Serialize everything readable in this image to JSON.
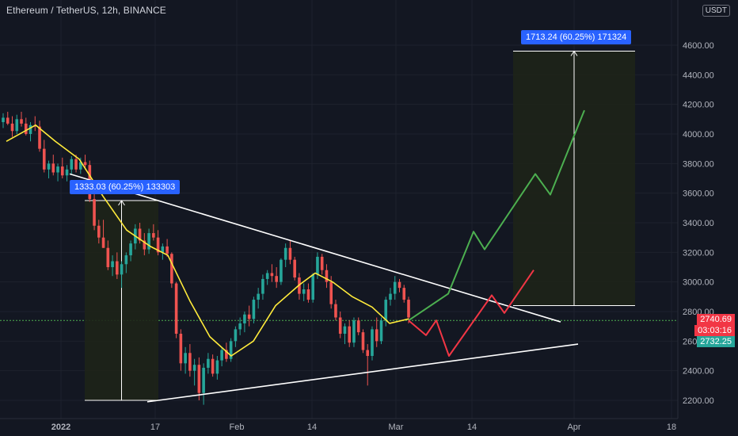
{
  "header": {
    "title": "Ethereum / TetherUS, 12h, BINANCE",
    "currency": "USDT"
  },
  "price_tags": {
    "last": "2740.69",
    "countdown": "03:03:16",
    "secondary": "2732.25",
    "last_color": "#f23645",
    "secondary_color": "#26a69a"
  },
  "annotations": {
    "measure_left": "1333.03 (60.25%) 133303",
    "measure_right": "1713.24 (60.25%) 171324"
  },
  "colors": {
    "up": "#26a69a",
    "down": "#ef5350",
    "ma": "#ffeb3b",
    "trendline": "#ffffff",
    "projection_up": "#4caf50",
    "projection_down": "#f23645",
    "hline": "#4caf50",
    "measure_box": "#1e2418"
  },
  "chart_data": {
    "type": "candlestick",
    "title": "Ethereum / TetherUS, 12h, BINANCE",
    "y_unit": "USDT",
    "ylim": [
      2130,
      4840
    ],
    "y_ticks": [
      "4600.00",
      "4400.00",
      "4200.00",
      "4000.00",
      "3800.00",
      "3600.00",
      "3400.00",
      "3200.00",
      "3000.00",
      "2800.00",
      "2600.00",
      "2400.00",
      "2200.00"
    ],
    "x_ticks": [
      "2022",
      "17",
      "Feb",
      "14",
      "Mar",
      "14",
      "Apr",
      "18"
    ],
    "candles": [
      [
        4080,
        4140,
        4040,
        4110
      ],
      [
        4110,
        4150,
        4060,
        4070
      ],
      [
        4070,
        4120,
        3980,
        4020
      ],
      [
        4020,
        4130,
        4000,
        4100
      ],
      [
        4100,
        4150,
        4050,
        4070
      ],
      [
        4070,
        4110,
        3990,
        4000
      ],
      [
        4000,
        4080,
        3950,
        4060
      ],
      [
        4060,
        4120,
        4020,
        4050
      ],
      [
        4050,
        4090,
        3880,
        3900
      ],
      [
        3900,
        3960,
        3740,
        3760
      ],
      [
        3760,
        3820,
        3700,
        3800
      ],
      [
        3800,
        3860,
        3720,
        3740
      ],
      [
        3740,
        3800,
        3680,
        3780
      ],
      [
        3780,
        3840,
        3700,
        3720
      ],
      [
        3720,
        3790,
        3680,
        3760
      ],
      [
        3760,
        3850,
        3730,
        3830
      ],
      [
        3830,
        3860,
        3740,
        3760
      ],
      [
        3760,
        3840,
        3730,
        3810
      ],
      [
        3810,
        3860,
        3760,
        3790
      ],
      [
        3790,
        3820,
        3540,
        3560
      ],
      [
        3560,
        3600,
        3350,
        3380
      ],
      [
        3380,
        3420,
        3260,
        3300
      ],
      [
        3300,
        3420,
        3230,
        3230
      ],
      [
        3230,
        3280,
        3080,
        3100
      ],
      [
        3100,
        3180,
        3040,
        3140
      ],
      [
        3140,
        3200,
        3020,
        3050
      ],
      [
        3050,
        3140,
        2960,
        3120
      ],
      [
        3120,
        3200,
        3060,
        3180
      ],
      [
        3180,
        3280,
        3140,
        3260
      ],
      [
        3260,
        3390,
        3220,
        3360
      ],
      [
        3360,
        3400,
        3260,
        3280
      ],
      [
        3280,
        3330,
        3180,
        3220
      ],
      [
        3220,
        3360,
        3190,
        3330
      ],
      [
        3330,
        3390,
        3280,
        3300
      ],
      [
        3300,
        3350,
        3180,
        3200
      ],
      [
        3200,
        3260,
        3150,
        3240
      ],
      [
        3240,
        3290,
        3170,
        3190
      ],
      [
        3190,
        3200,
        2960,
        2990
      ],
      [
        2990,
        3000,
        2620,
        2650
      ],
      [
        2650,
        2680,
        2400,
        2450
      ],
      [
        2450,
        2560,
        2380,
        2520
      ],
      [
        2520,
        2580,
        2360,
        2400
      ],
      [
        2400,
        2480,
        2300,
        2440
      ],
      [
        2440,
        2490,
        2200,
        2250
      ],
      [
        2250,
        2450,
        2170,
        2420
      ],
      [
        2420,
        2520,
        2380,
        2480
      ],
      [
        2480,
        2510,
        2360,
        2380
      ],
      [
        2380,
        2500,
        2340,
        2470
      ],
      [
        2470,
        2560,
        2430,
        2540
      ],
      [
        2540,
        2590,
        2460,
        2480
      ],
      [
        2480,
        2620,
        2460,
        2600
      ],
      [
        2600,
        2700,
        2560,
        2680
      ],
      [
        2680,
        2760,
        2640,
        2720
      ],
      [
        2720,
        2800,
        2660,
        2780
      ],
      [
        2780,
        2840,
        2700,
        2750
      ],
      [
        2750,
        2900,
        2720,
        2880
      ],
      [
        2880,
        2960,
        2820,
        2920
      ],
      [
        2920,
        3050,
        2880,
        3020
      ],
      [
        3020,
        3080,
        2980,
        3060
      ],
      [
        3060,
        3120,
        3000,
        3040
      ],
      [
        3040,
        3100,
        2960,
        3000
      ],
      [
        3000,
        3160,
        2980,
        3150
      ],
      [
        3150,
        3260,
        3100,
        3230
      ],
      [
        3230,
        3280,
        3120,
        3150
      ],
      [
        3150,
        3170,
        3010,
        3030
      ],
      [
        3030,
        3060,
        2880,
        2920
      ],
      [
        2920,
        2990,
        2870,
        2950
      ],
      [
        2950,
        2990,
        2860,
        2880
      ],
      [
        2880,
        3060,
        2860,
        3050
      ],
      [
        3050,
        3200,
        3020,
        3170
      ],
      [
        3170,
        3190,
        3050,
        3080
      ],
      [
        3080,
        3120,
        2960,
        3000
      ],
      [
        3000,
        3040,
        2820,
        2850
      ],
      [
        2850,
        2880,
        2740,
        2760
      ],
      [
        2760,
        2800,
        2620,
        2650
      ],
      [
        2650,
        2720,
        2580,
        2700
      ],
      [
        2700,
        2740,
        2560,
        2590
      ],
      [
        2590,
        2760,
        2560,
        2740
      ],
      [
        2740,
        2760,
        2640,
        2660
      ],
      [
        2660,
        2680,
        2520,
        2540
      ],
      [
        2540,
        2580,
        2300,
        2500
      ],
      [
        2500,
        2700,
        2470,
        2680
      ],
      [
        2680,
        2760,
        2560,
        2600
      ],
      [
        2600,
        2760,
        2580,
        2740
      ],
      [
        2740,
        2900,
        2700,
        2880
      ],
      [
        2880,
        2960,
        2840,
        2920
      ],
      [
        2920,
        3040,
        2880,
        3000
      ],
      [
        3000,
        3020,
        2930,
        2960
      ],
      [
        2960,
        2980,
        2860,
        2880
      ],
      [
        2880,
        2900,
        2720,
        2760
      ]
    ],
    "ma_line": [
      [
        8,
        3950
      ],
      [
        45,
        4060
      ],
      [
        70,
        3950
      ],
      [
        100,
        3830
      ],
      [
        130,
        3580
      ],
      [
        160,
        3350
      ],
      [
        190,
        3240
      ],
      [
        212,
        3180
      ],
      [
        240,
        2870
      ],
      [
        265,
        2630
      ],
      [
        292,
        2500
      ],
      [
        320,
        2600
      ],
      [
        348,
        2840
      ],
      [
        378,
        2980
      ],
      [
        398,
        3060
      ],
      [
        420,
        3000
      ],
      [
        445,
        2900
      ],
      [
        470,
        2830
      ],
      [
        492,
        2720
      ],
      [
        516,
        2750
      ]
    ],
    "trendlines": [
      {
        "from": [
          88,
          3730
        ],
        "to": [
          708,
          2730
        ]
      },
      {
        "from": [
          186,
          2190
        ],
        "to": [
          730,
          2580
        ]
      }
    ],
    "projections": {
      "up_path": [
        [
          516,
          2740
        ],
        [
          566,
          2920
        ],
        [
          598,
          3340
        ],
        [
          612,
          3220
        ],
        [
          676,
          3730
        ],
        [
          695,
          3590
        ],
        [
          738,
          4160
        ]
      ],
      "down_path": [
        [
          516,
          2740
        ],
        [
          538,
          2640
        ],
        [
          551,
          2740
        ],
        [
          567,
          2500
        ],
        [
          621,
          2910
        ],
        [
          637,
          2790
        ],
        [
          674,
          3080
        ]
      ]
    },
    "measure_boxes": [
      {
        "x_range": [
          107,
          200
        ],
        "y_range": [
          2200,
          3550
        ]
      },
      {
        "x_range": [
          648,
          802
        ],
        "y_range": [
          2840,
          4560
        ]
      }
    ],
    "hline": 2740
  }
}
